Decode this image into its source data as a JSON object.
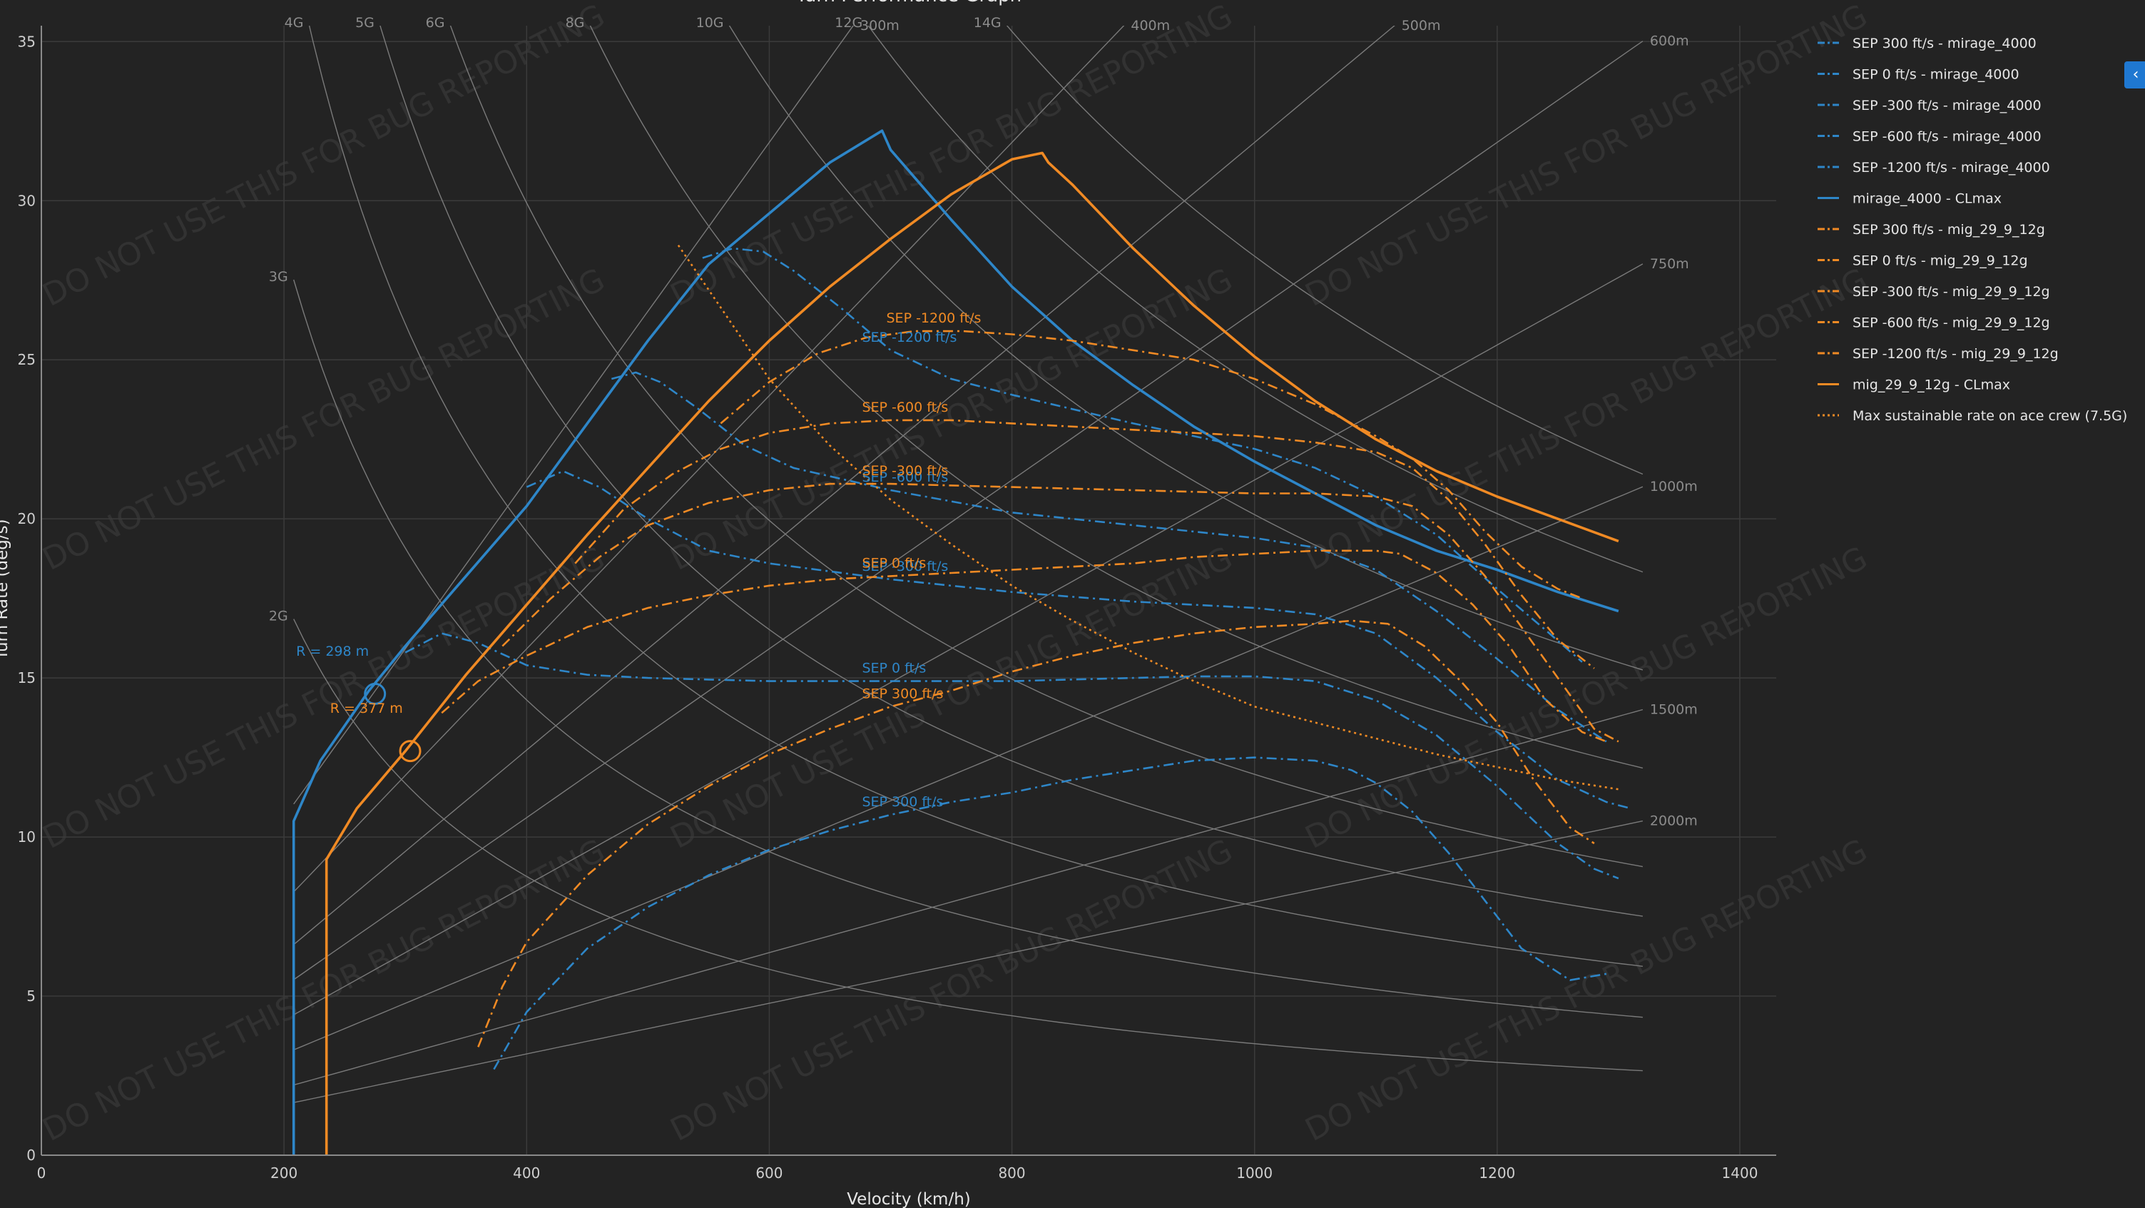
{
  "colors": {
    "mirage": "#2e86c8",
    "mig": "#f08a24",
    "background": "#232323"
  },
  "chart_data": {
    "type": "line",
    "title": "Turn Performance Graph",
    "xlabel": "Velocity (km/h)",
    "ylabel": "Turn Rate (deg/s)",
    "xlim": [
      0,
      1430
    ],
    "ylim": [
      0,
      35.5
    ],
    "xticks": [
      0,
      200,
      400,
      600,
      800,
      1000,
      1200,
      1400
    ],
    "yticks": [
      0,
      5,
      10,
      15,
      20,
      25,
      30,
      35
    ],
    "grid": true,
    "legend_position": "right",
    "watermark": "DO NOT USE THIS FOR BUG REPORTING",
    "g_lines": {
      "x_range": [
        208,
        1320
      ],
      "labels": [
        {
          "g": 2,
          "text": "2G"
        },
        {
          "g": 3,
          "text": "3G"
        },
        {
          "g": 4,
          "text": "4G"
        },
        {
          "g": 5,
          "text": "5G"
        },
        {
          "g": 6,
          "text": "6G"
        },
        {
          "g": 8,
          "text": "8G"
        },
        {
          "g": 10,
          "text": "10G"
        },
        {
          "g": 12,
          "text": "12G"
        },
        {
          "g": 14,
          "text": "14G"
        }
      ]
    },
    "radius_lines": {
      "x_range": [
        208,
        1320
      ],
      "labels": [
        {
          "r": 300,
          "text": "300m"
        },
        {
          "r": 400,
          "text": "400m"
        },
        {
          "r": 500,
          "text": "500m"
        },
        {
          "r": 600,
          "text": "600m"
        },
        {
          "r": 750,
          "text": "750m"
        },
        {
          "r": 1000,
          "text": "1000m"
        },
        {
          "r": 1500,
          "text": "1500m"
        },
        {
          "r": 2000,
          "text": "2000m"
        }
      ]
    },
    "series": [
      {
        "name": "SEP 300 ft/s - mirage_4000",
        "aircraft": "mirage",
        "style": "dashdot",
        "label": "SEP 300 ft/s",
        "x": [
          373,
          400,
          450,
          500,
          550,
          600,
          650,
          700,
          750,
          800,
          850,
          900,
          950,
          1000,
          1050,
          1080,
          1100,
          1130,
          1160,
          1190,
          1220,
          1260,
          1290
        ],
        "y": [
          2.7,
          4.5,
          6.5,
          7.8,
          8.8,
          9.6,
          10.2,
          10.7,
          11.1,
          11.4,
          11.8,
          12.1,
          12.4,
          12.5,
          12.4,
          12.1,
          11.7,
          10.8,
          9.5,
          8.0,
          6.5,
          5.5,
          5.7
        ]
      },
      {
        "name": "SEP 0 ft/s - mirage_4000",
        "aircraft": "mirage",
        "style": "dashdot",
        "label": "SEP 0 ft/s",
        "x": [
          300,
          330,
          360,
          400,
          450,
          500,
          550,
          600,
          700,
          800,
          900,
          950,
          1000,
          1050,
          1100,
          1150,
          1200,
          1250,
          1280,
          1300
        ],
        "y": [
          15.8,
          16.4,
          16.1,
          15.4,
          15.1,
          15.0,
          14.95,
          14.9,
          14.9,
          14.9,
          15.0,
          15.05,
          15.05,
          14.9,
          14.3,
          13.2,
          11.6,
          9.8,
          9.0,
          8.7
        ]
      },
      {
        "name": "SEP -300 ft/s - mirage_4000",
        "aircraft": "mirage",
        "style": "dashdot",
        "label": "SEP -300 ft/s",
        "x": [
          400,
          430,
          460,
          500,
          550,
          600,
          700,
          800,
          900,
          1000,
          1050,
          1100,
          1150,
          1200,
          1250,
          1290,
          1310
        ],
        "y": [
          21.0,
          21.5,
          21.0,
          20.0,
          19.0,
          18.6,
          18.1,
          17.7,
          17.4,
          17.2,
          17.0,
          16.4,
          15.0,
          13.3,
          11.8,
          11.1,
          10.9
        ]
      },
      {
        "name": "SEP -600 ft/s - mirage_4000",
        "aircraft": "mirage",
        "style": "dashdot",
        "label": "SEP -600 ft/s",
        "x": [
          470,
          490,
          510,
          540,
          580,
          620,
          700,
          800,
          900,
          1000,
          1050,
          1100,
          1150,
          1200,
          1250,
          1290
        ],
        "y": [
          24.4,
          24.6,
          24.3,
          23.5,
          22.3,
          21.6,
          20.9,
          20.2,
          19.8,
          19.4,
          19.1,
          18.4,
          17.1,
          15.6,
          14.0,
          13.0
        ]
      },
      {
        "name": "SEP -1200 ft/s - mirage_4000",
        "aircraft": "mirage",
        "style": "dashdot",
        "label": "SEP -1200 ft/s",
        "x": [
          545,
          570,
          595,
          620,
          660,
          700,
          750,
          800,
          900,
          1000,
          1050,
          1100,
          1150,
          1200,
          1240,
          1270
        ],
        "y": [
          28.2,
          28.5,
          28.4,
          27.8,
          26.6,
          25.3,
          24.4,
          23.9,
          23.0,
          22.2,
          21.6,
          20.7,
          19.5,
          17.8,
          16.5,
          15.5
        ]
      },
      {
        "name": "mirage_4000 - CLmax",
        "aircraft": "mirage",
        "style": "solid",
        "x": [
          208,
          208,
          230,
          270,
          300,
          350,
          400,
          450,
          500,
          550,
          600,
          650,
          693,
          700,
          750,
          800,
          850,
          900,
          950,
          1000,
          1050,
          1100,
          1150,
          1200,
          1250,
          1300
        ],
        "y": [
          0,
          10.5,
          12.4,
          14.6,
          16.0,
          18.2,
          20.4,
          23.0,
          25.6,
          28.0,
          29.6,
          31.2,
          32.2,
          31.6,
          29.4,
          27.3,
          25.6,
          24.2,
          22.9,
          21.8,
          20.8,
          19.8,
          19.0,
          18.4,
          17.7,
          17.1
        ]
      },
      {
        "name": "SEP 300 ft/s - mig_29_9_12g",
        "aircraft": "mig",
        "style": "dashdot",
        "label": "SEP 300 ft/s",
        "x": [
          360,
          380,
          400,
          450,
          500,
          550,
          600,
          650,
          700,
          750,
          800,
          850,
          900,
          950,
          1000,
          1050,
          1080,
          1110,
          1140,
          1170,
          1200,
          1230,
          1260,
          1280
        ],
        "y": [
          3.4,
          5.3,
          6.7,
          8.8,
          10.4,
          11.6,
          12.6,
          13.4,
          14.1,
          14.6,
          15.2,
          15.7,
          16.1,
          16.4,
          16.6,
          16.7,
          16.8,
          16.7,
          16.0,
          14.9,
          13.6,
          11.8,
          10.3,
          9.8
        ]
      },
      {
        "name": "SEP 0 ft/s - mig_29_9_12g",
        "aircraft": "mig",
        "style": "dashdot",
        "label": "SEP 0 ft/s",
        "x": [
          330,
          360,
          400,
          450,
          500,
          550,
          600,
          650,
          700,
          750,
          800,
          850,
          900,
          950,
          1000,
          1050,
          1100,
          1120,
          1150,
          1180,
          1210,
          1240,
          1270,
          1290
        ],
        "y": [
          13.9,
          14.9,
          15.7,
          16.6,
          17.2,
          17.6,
          17.9,
          18.1,
          18.2,
          18.3,
          18.4,
          18.5,
          18.6,
          18.8,
          18.9,
          19.0,
          19.0,
          18.9,
          18.3,
          17.3,
          16.0,
          14.3,
          13.3,
          13.0
        ]
      },
      {
        "name": "SEP -300 ft/s - mig_29_9_12g",
        "aircraft": "mig",
        "style": "dashdot",
        "label": "SEP -300 ft/s",
        "x": [
          380,
          420,
          460,
          500,
          550,
          600,
          650,
          700,
          800,
          900,
          1000,
          1050,
          1100,
          1130,
          1160,
          1190,
          1220,
          1250,
          1280,
          1300
        ],
        "y": [
          16.0,
          17.5,
          18.8,
          19.8,
          20.5,
          20.9,
          21.1,
          21.1,
          21.0,
          20.9,
          20.8,
          20.8,
          20.7,
          20.4,
          19.5,
          18.2,
          16.6,
          15.0,
          13.4,
          13.0
        ]
      },
      {
        "name": "SEP -600 ft/s - mig_29_9_12g",
        "aircraft": "mig",
        "style": "dashdot",
        "label": "SEP -600 ft/s",
        "x": [
          440,
          480,
          520,
          560,
          600,
          650,
          700,
          750,
          800,
          900,
          1000,
          1050,
          1100,
          1130,
          1160,
          1190,
          1220,
          1250,
          1280
        ],
        "y": [
          18.6,
          20.3,
          21.4,
          22.2,
          22.7,
          23.0,
          23.1,
          23.1,
          23.0,
          22.8,
          22.6,
          22.4,
          22.1,
          21.6,
          20.6,
          19.2,
          17.6,
          16.2,
          15.3
        ]
      },
      {
        "name": "SEP -1200 ft/s - mig_29_9_12g",
        "aircraft": "mig",
        "style": "dashdot",
        "label": "SEP -1200 ft/s",
        "x": [
          560,
          600,
          640,
          680,
          720,
          760,
          800,
          850,
          900,
          950,
          1000,
          1050,
          1100,
          1130,
          1160,
          1190,
          1220,
          1250,
          1270
        ],
        "y": [
          23.0,
          24.3,
          25.2,
          25.7,
          25.9,
          25.9,
          25.8,
          25.6,
          25.3,
          25.0,
          24.4,
          23.6,
          22.6,
          21.9,
          20.9,
          19.6,
          18.5,
          17.8,
          17.5
        ]
      },
      {
        "name": "mig_29_9_12g - CLmax",
        "aircraft": "mig",
        "style": "solid",
        "x": [
          235,
          235,
          260,
          300,
          350,
          400,
          450,
          500,
          550,
          600,
          650,
          700,
          750,
          800,
          825,
          830,
          850,
          900,
          950,
          1000,
          1050,
          1100,
          1150,
          1200,
          1250,
          1300
        ],
        "y": [
          0,
          9.3,
          10.9,
          12.7,
          15.1,
          17.3,
          19.5,
          21.6,
          23.7,
          25.6,
          27.3,
          28.8,
          30.2,
          31.3,
          31.5,
          31.2,
          30.5,
          28.5,
          26.7,
          25.1,
          23.7,
          22.5,
          21.5,
          20.7,
          20.0,
          19.3
        ]
      },
      {
        "name": "Max sustainable rate on ace crew (7.5G)",
        "aircraft": "mig",
        "style": "dotted",
        "x": [
          525,
          550,
          600,
          650,
          700,
          750,
          800,
          850,
          900,
          950,
          1000,
          1050,
          1100,
          1150,
          1200,
          1250,
          1300
        ],
        "y": [
          28.6,
          27.2,
          24.4,
          22.3,
          20.6,
          19.2,
          17.9,
          16.8,
          15.8,
          14.9,
          14.1,
          13.6,
          13.1,
          12.6,
          12.2,
          11.8,
          11.5
        ]
      }
    ],
    "annotations": [
      {
        "text": "R = 298 m",
        "aircraft": "mirage",
        "x": 275,
        "y": 14.5,
        "label_x": 210,
        "label_y": 15.7
      },
      {
        "text": "R = 377 m",
        "aircraft": "mig",
        "x": 304,
        "y": 12.7,
        "label_x": 238,
        "label_y": 13.9
      }
    ]
  }
}
